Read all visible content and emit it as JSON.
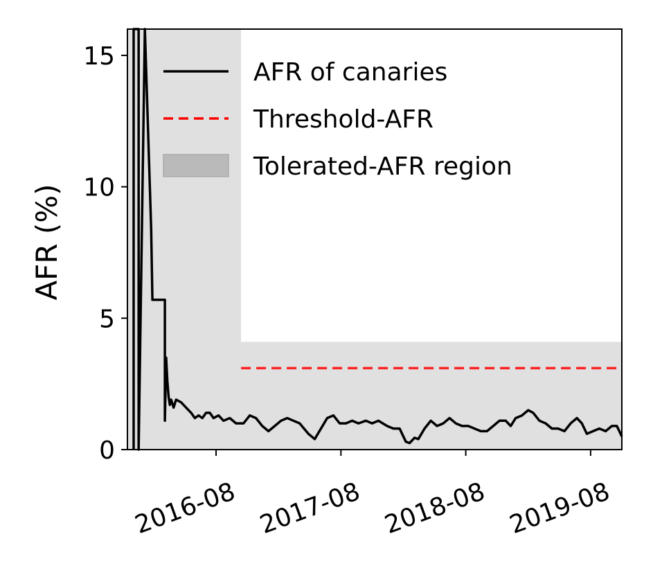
{
  "chart_data": {
    "type": "line",
    "title": "",
    "xlabel": "",
    "ylabel": "AFR (%)",
    "xlim": [
      2015.87,
      2019.83
    ],
    "ylim": [
      0,
      16
    ],
    "xticks": [
      {
        "value": 2016.58,
        "label": "2016-08"
      },
      {
        "value": 2017.58,
        "label": "2017-08"
      },
      {
        "value": 2018.58,
        "label": "2018-08"
      },
      {
        "value": 2019.58,
        "label": "2019-08"
      }
    ],
    "yticks": [
      {
        "value": 0,
        "label": "0"
      },
      {
        "value": 5,
        "label": "5"
      },
      {
        "value": 10,
        "label": "10"
      },
      {
        "value": 15,
        "label": "15"
      }
    ],
    "grid": false,
    "legend_position": "top-right",
    "series": [
      {
        "name": "AFR of canaries",
        "color": "#000000",
        "style": "solid",
        "points": [
          [
            2015.92,
            0
          ],
          [
            2015.92,
            16
          ],
          [
            2015.92,
            16
          ],
          [
            2015.96,
            16
          ],
          [
            2015.96,
            0
          ],
          [
            2015.96,
            0
          ],
          [
            2016.01,
            16
          ],
          [
            2016.01,
            16
          ],
          [
            2016.06,
            8.4
          ],
          [
            2016.06,
            8.4
          ],
          [
            2016.07,
            5.7
          ],
          [
            2016.11,
            5.7
          ],
          [
            2016.17,
            5.7
          ],
          [
            2016.17,
            1.1
          ],
          [
            2016.18,
            3.5
          ],
          [
            2016.19,
            2.6
          ],
          [
            2016.2,
            2.0
          ],
          [
            2016.21,
            1.7
          ],
          [
            2016.22,
            1.9
          ],
          [
            2016.24,
            1.6
          ],
          [
            2016.26,
            1.9
          ],
          [
            2016.3,
            1.8
          ],
          [
            2016.34,
            1.6
          ],
          [
            2016.38,
            1.4
          ],
          [
            2016.41,
            1.2
          ],
          [
            2016.44,
            1.3
          ],
          [
            2016.47,
            1.2
          ],
          [
            2016.5,
            1.4
          ],
          [
            2016.53,
            1.4
          ],
          [
            2016.56,
            1.2
          ],
          [
            2016.6,
            1.3
          ],
          [
            2016.64,
            1.1
          ],
          [
            2016.69,
            1.2
          ],
          [
            2016.74,
            1.0
          ],
          [
            2016.8,
            1.0
          ],
          [
            2016.85,
            1.3
          ],
          [
            2016.9,
            1.2
          ],
          [
            2016.95,
            0.9
          ],
          [
            2017.0,
            0.7
          ],
          [
            2017.05,
            0.9
          ],
          [
            2017.1,
            1.1
          ],
          [
            2017.15,
            1.2
          ],
          [
            2017.2,
            1.1
          ],
          [
            2017.25,
            1.0
          ],
          [
            2017.32,
            0.6
          ],
          [
            2017.37,
            0.4
          ],
          [
            2017.42,
            0.8
          ],
          [
            2017.47,
            1.2
          ],
          [
            2017.52,
            1.3
          ],
          [
            2017.57,
            1.0
          ],
          [
            2017.62,
            1.0
          ],
          [
            2017.67,
            1.1
          ],
          [
            2017.72,
            1.0
          ],
          [
            2017.78,
            1.1
          ],
          [
            2017.83,
            1.0
          ],
          [
            2017.88,
            1.1
          ],
          [
            2017.95,
            0.9
          ],
          [
            2018.0,
            0.8
          ],
          [
            2018.05,
            0.8
          ],
          [
            2018.1,
            0.3
          ],
          [
            2018.13,
            0.25
          ],
          [
            2018.17,
            0.45
          ],
          [
            2018.2,
            0.4
          ],
          [
            2018.25,
            0.8
          ],
          [
            2018.3,
            1.1
          ],
          [
            2018.35,
            0.9
          ],
          [
            2018.4,
            1.0
          ],
          [
            2018.45,
            1.2
          ],
          [
            2018.5,
            1.0
          ],
          [
            2018.55,
            0.9
          ],
          [
            2018.6,
            0.9
          ],
          [
            2018.65,
            0.8
          ],
          [
            2018.7,
            0.7
          ],
          [
            2018.75,
            0.7
          ],
          [
            2018.8,
            0.9
          ],
          [
            2018.85,
            1.1
          ],
          [
            2018.9,
            1.1
          ],
          [
            2018.94,
            0.9
          ],
          [
            2018.98,
            1.2
          ],
          [
            2019.03,
            1.3
          ],
          [
            2019.08,
            1.5
          ],
          [
            2019.12,
            1.4
          ],
          [
            2019.17,
            1.1
          ],
          [
            2019.22,
            1.0
          ],
          [
            2019.27,
            0.8
          ],
          [
            2019.32,
            0.8
          ],
          [
            2019.37,
            0.7
          ],
          [
            2019.42,
            1.0
          ],
          [
            2019.47,
            1.2
          ],
          [
            2019.51,
            1.0
          ],
          [
            2019.55,
            0.6
          ],
          [
            2019.6,
            0.7
          ],
          [
            2019.65,
            0.8
          ],
          [
            2019.7,
            0.7
          ],
          [
            2019.75,
            0.9
          ],
          [
            2019.79,
            0.9
          ],
          [
            2019.83,
            0.5
          ]
        ]
      },
      {
        "name": "Threshold-AFR",
        "color": "#ff0000",
        "style": "dashed",
        "points": [
          [
            2016.78,
            3.1
          ],
          [
            2019.83,
            3.1
          ]
        ]
      }
    ],
    "regions": [
      {
        "name": "Tolerated-AFR region",
        "x_start": 2015.87,
        "x_end": 2016.78,
        "y_start": 0,
        "y_end": 16
      },
      {
        "name": "Tolerated-AFR region",
        "x_start": 2016.78,
        "x_end": 2019.83,
        "y_start": 0,
        "y_end": 4.1
      }
    ],
    "region_color": "#e0e0e0",
    "legend": [
      {
        "label": "AFR of canaries",
        "kind": "solid-line",
        "color": "#000000"
      },
      {
        "label": "Threshold-AFR",
        "kind": "dashed-line",
        "color": "#ff0000"
      },
      {
        "label": "Tolerated-AFR region",
        "kind": "patch",
        "color": "#aaaaaa"
      }
    ]
  }
}
